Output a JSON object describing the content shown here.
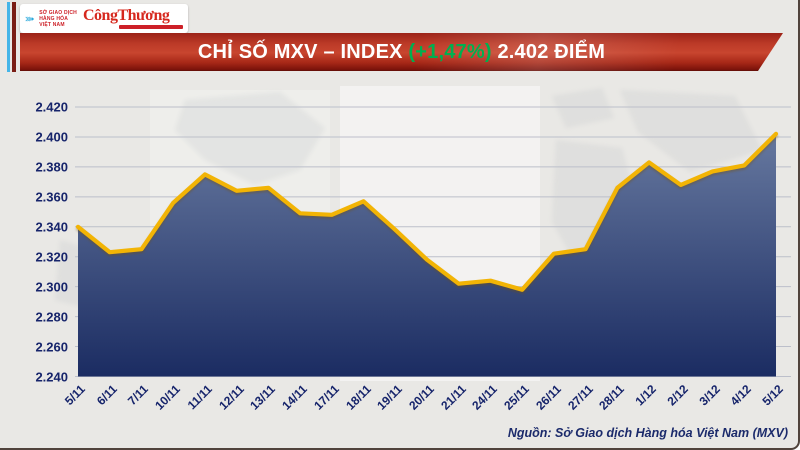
{
  "header": {
    "mxv_logo": {
      "icon": "chevrons-icon",
      "lines": [
        "SỞ GIAO DỊCH",
        "HÀNG HÓA",
        "VIỆT NAM"
      ]
    },
    "congthuong_logo": "CôngThương"
  },
  "banner": {
    "title_prefix": "CHỈ SỐ MXV – INDEX ",
    "title_change": "(+1,47%)",
    "title_suffix": " 2.402 ĐIỂM"
  },
  "chart_data": {
    "type": "area",
    "title": "CHỈ SỐ MXV – INDEX (+1,47%) 2.402 ĐIỂM",
    "x": [
      "5/11",
      "6/11",
      "7/11",
      "10/11",
      "11/11",
      "12/11",
      "13/11",
      "14/11",
      "17/11",
      "18/11",
      "19/11",
      "20/11",
      "21/11",
      "24/11",
      "25/11",
      "26/11",
      "27/11",
      "28/11",
      "1/12",
      "2/12",
      "3/12",
      "4/12",
      "5/12"
    ],
    "values": [
      2340,
      2323,
      2325,
      2356,
      2375,
      2364,
      2366,
      2349,
      2348,
      2357,
      2338,
      2318,
      2302,
      2304,
      2298,
      2322,
      2325,
      2366,
      2383,
      2368,
      2377,
      2381,
      2402
    ],
    "ylim": [
      2240,
      2420
    ],
    "yticks": [
      2420,
      2400,
      2380,
      2360,
      2340,
      2320,
      2300,
      2280,
      2260,
      2240
    ],
    "ytick_labels": [
      "2.420",
      "2.400",
      "2.380",
      "2.360",
      "2.340",
      "2.320",
      "2.300",
      "2.280",
      "2.260",
      "2.240"
    ],
    "xlabel": "",
    "ylabel": "",
    "grid": true,
    "legend": "none",
    "line_color": "#f2b405",
    "fill_top": "#66789f",
    "fill_bottom": "#1b2c62",
    "grid_color": "#bcbfca",
    "label_color": "#16246b"
  },
  "footer": {
    "source": "Nguồn: Sở Giao dịch Hàng hóa Việt Nam (MXV)"
  },
  "colors": {
    "banner_red": "#bc3a27",
    "green_change": "#00b050",
    "logo_cyan": "#2aa9dc",
    "logo_red": "#cd2027",
    "frame_bg": "#e9e8e5"
  }
}
